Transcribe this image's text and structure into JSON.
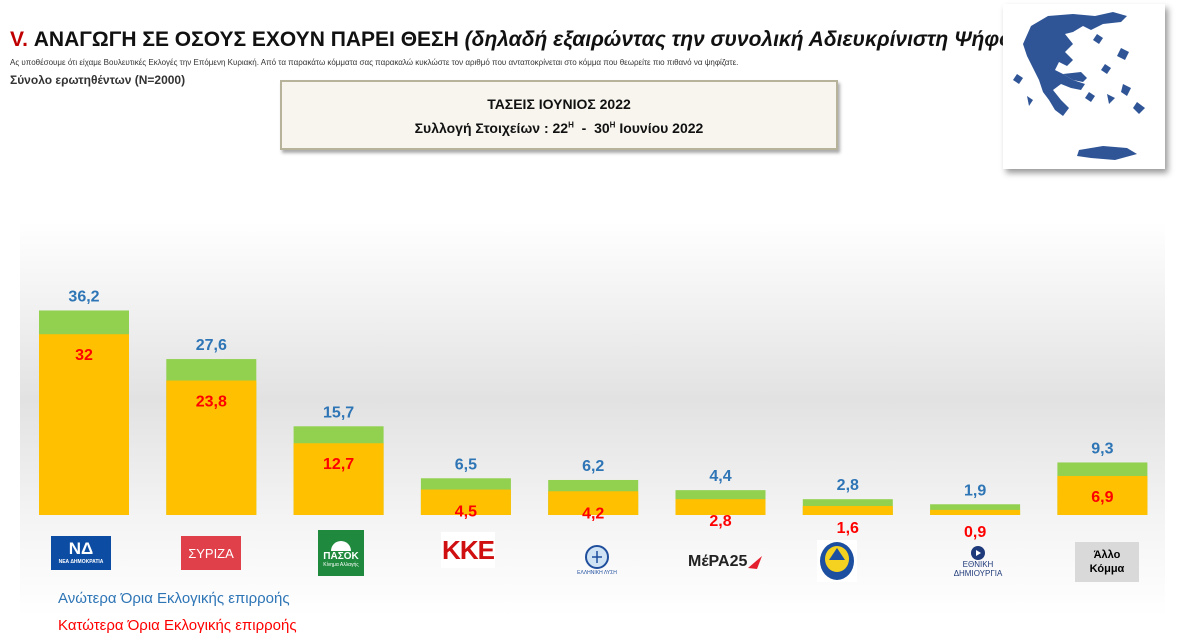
{
  "header": {
    "num": "V.",
    "title_main": "ΑΝΑΓΩΓΗ ΣΕ ΟΣΟΥΣ ΕΧΟΥΝ ΠΑΡΕΙ ΘΕΣΗ",
    "title_sub": "(δηλαδή εξαιρώντας την συνολική Αδιευκρίνιστη Ψήφο)",
    "note": "Ας υποθέσουμε ότι είχαμε Βουλευτικές Εκλογές την Επόμενη Κυριακή. Από τα παρακάτω κόμματα σας παρακαλώ κυκλώστε τον αριθμό που ανταποκρίνεται στο κόμμα που θεωρείτε πιο πιθανό να ψηφίζατε.",
    "sample": "Σύνολο ερωτηθέντων (N=2000)"
  },
  "info": {
    "line1": "ΤΑΣΕΙΣ ΙΟΥΝΙΟΣ 2022",
    "line2_a": "Συλλογή Στοιχείων : 22",
    "sup_a": "Η",
    "line2_b": "  -  30",
    "sup_b": "Η",
    "line2_c": " Ιουνίου 2022"
  },
  "logos": {
    "nd": "ΝΔ",
    "nd_small": "ΝΕΑ ΔΗΜΟΚΡΑΤΙΑ",
    "syriza": "ΣΥΡΙΖΑ",
    "pasok": "ΠΑΣΟΚ",
    "pasok_small": "Κίνημα Αλλαγής",
    "kke": "ΚΚΕ",
    "el_lyse": "ΕΛΛΗΝΙΚΗ ΛΥΣΗ",
    "mera": "ΜέΡΑ25",
    "niki": "ΝΙΚΗ",
    "ethniki1": "ΕΘΝΙΚΗ",
    "ethniki2": "ΔΗΜΙΟΥΡΓΙΑ",
    "allo1": "Άλλο",
    "allo2": "Κόμμα"
  },
  "legend": {
    "upper": "Ανώτερα Όρια Εκλογικής επιρροής",
    "lower": "Κατώτερα Όρια Εκλογικής επιρροής"
  },
  "chart_data": {
    "type": "bar",
    "categories": [
      "ΝΔ",
      "ΣΥΡΙΖΑ",
      "ΠΑΣΟΚ",
      "ΚΚΕ",
      "Ελληνική Λύση",
      "ΜέΡΑ25",
      "ΝΙΚΗ",
      "Εθνική Δημιουργία",
      "Άλλο Κόμμα"
    ],
    "series": [
      {
        "name": "Ανώτερα Όρια Εκλογικής επιρροής",
        "values": [
          36.2,
          27.6,
          15.7,
          6.5,
          6.2,
          4.4,
          2.8,
          1.9,
          9.3
        ],
        "labels": [
          "36,2",
          "27,6",
          "15,7",
          "6,5",
          "6,2",
          "4,4",
          "2,8",
          "1,9",
          "9,3"
        ]
      },
      {
        "name": "Κατώτερα Όρια Εκλογικής επιρροής",
        "values": [
          32,
          23.8,
          12.7,
          4.5,
          4.2,
          2.8,
          1.6,
          0.9,
          6.9
        ],
        "labels": [
          "32",
          "23,8",
          "12,7",
          "4,5",
          "4,2",
          "2,8",
          "1,6",
          "0,9",
          "6,9"
        ]
      }
    ],
    "colors": {
      "upper_bar": "#92d050",
      "lower_bar": "#ffc000",
      "upper_label": "#2e75b6",
      "lower_label": "#ff0000"
    },
    "grid": false
  }
}
